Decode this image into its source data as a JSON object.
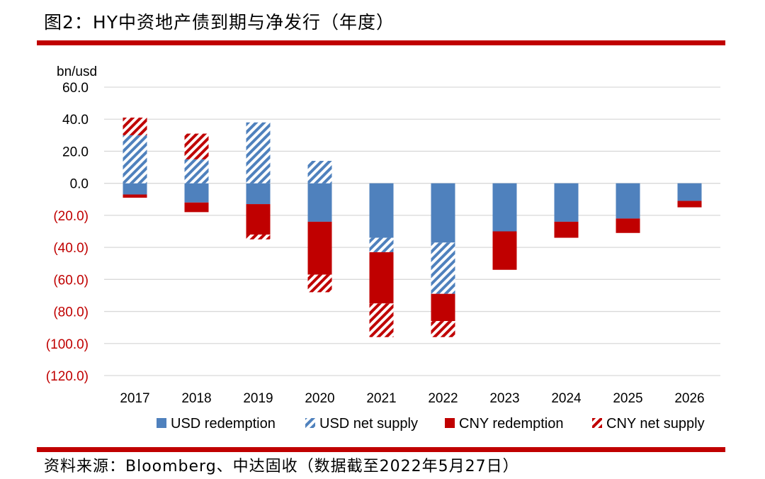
{
  "figure_title": "图2：HY中资地产债到期与净发行（年度）",
  "source_text": "资料来源：Bloomberg、中达固收（数据截至2022年5月27日）",
  "colors": {
    "rule": "#c00000",
    "usd": "#4f81bd",
    "cny": "#c00000",
    "negative_tick": "#c00000",
    "grid": "#d9d9d9"
  },
  "chart_data": {
    "type": "bar",
    "stacked": true,
    "title": "",
    "ylabel": "bn/usd",
    "xlabel": "",
    "ylim": [
      -120,
      60
    ],
    "yticks": [
      60,
      40,
      20,
      0,
      -20,
      -40,
      -60,
      -80,
      -100,
      -120
    ],
    "ytick_labels": [
      "60.0",
      "40.0",
      "20.0",
      "0.0",
      "(20.0)",
      "(40.0)",
      "(60.0)",
      "(80.0)",
      "(100.0)",
      "(120.0)"
    ],
    "categories": [
      "2017",
      "2018",
      "2019",
      "2020",
      "2021",
      "2022",
      "2023",
      "2024",
      "2025",
      "2026"
    ],
    "series": [
      {
        "name": "USD redemption",
        "key": "usd_red",
        "style": "solid",
        "color": "#4f81bd",
        "values": [
          -7,
          -12,
          -13,
          -24,
          -34,
          -37,
          -30,
          -24,
          -22,
          -11
        ]
      },
      {
        "name": "USD net supply",
        "key": "usd_net",
        "style": "hatch",
        "color": "#4f81bd",
        "values": [
          30,
          15,
          38,
          14,
          -9,
          -32,
          0,
          0,
          0,
          0
        ]
      },
      {
        "name": "CNY redemption",
        "key": "cny_red",
        "style": "solid",
        "color": "#c00000",
        "values": [
          -2,
          -6,
          -19,
          -33,
          -32,
          -17,
          -24,
          -10,
          -9,
          -4
        ]
      },
      {
        "name": "CNY net supply",
        "key": "cny_net",
        "style": "hatch",
        "color": "#c00000",
        "values": [
          11,
          16,
          -3,
          -11,
          -21,
          -10,
          0,
          0,
          0,
          0
        ]
      }
    ],
    "legend_position": "bottom"
  }
}
